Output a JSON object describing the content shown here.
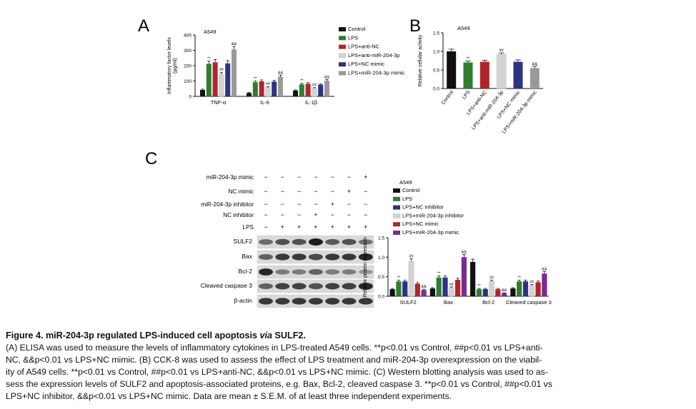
{
  "panel_letters": [
    "A",
    "B",
    "C"
  ],
  "colors": {
    "control": "#111111",
    "lps": "#2e7d2e",
    "red": "#b0252c",
    "light": "#d4d4d4",
    "navy": "#2b3480",
    "gray": "#9a9a9a",
    "purple": "#7a2a92"
  },
  "chart_data": [
    {
      "id": "A",
      "type": "bar",
      "title": "A549",
      "ylabel": "Inflammatory factor levels\n(pg/ml)",
      "xlabel": "",
      "ylim": [
        0,
        400
      ],
      "yticks": [
        "0",
        "100",
        "200",
        "300",
        "400"
      ],
      "categories": [
        "TNF-α",
        "IL-6",
        "IL-1β"
      ],
      "legend_position": "right",
      "series": [
        {
          "name": "Control",
          "color": "#111111",
          "values": [
            42,
            22,
            38
          ],
          "errors": [
            5,
            3,
            4
          ],
          "marks": [
            "",
            "",
            ""
          ]
        },
        {
          "name": "LPS",
          "color": "#2e7d2e",
          "values": [
            212,
            92,
            78
          ],
          "errors": [
            18,
            8,
            7
          ],
          "marks": [
            "**",
            "**",
            "**"
          ]
        },
        {
          "name": "LPS+anti-NC",
          "color": "#b0252c",
          "values": [
            222,
            98,
            82
          ],
          "errors": [
            18,
            9,
            7
          ],
          "marks": [
            "",
            "",
            ""
          ]
        },
        {
          "name": "LPS+anti-miR-204-3p",
          "color": "#d4d4d4",
          "values": [
            145,
            58,
            52
          ],
          "errors": [
            12,
            6,
            5
          ],
          "marks": [
            "##",
            "##",
            "##"
          ]
        },
        {
          "name": "LPS+NC mimic",
          "color": "#2b3480",
          "values": [
            215,
            96,
            76
          ],
          "errors": [
            18,
            8,
            6
          ],
          "marks": [
            "",
            "",
            ""
          ]
        },
        {
          "name": "LPS+miR-204-3p mimic",
          "color": "#9a9a9a",
          "values": [
            305,
            128,
            102
          ],
          "errors": [
            20,
            10,
            8
          ],
          "marks": [
            "&&",
            "&&",
            "&&"
          ]
        }
      ]
    },
    {
      "id": "B",
      "type": "bar",
      "title": "A549",
      "ylabel": "Relative cellular activity",
      "xlabel": "",
      "ylim": [
        0,
        1.5
      ],
      "yticks": [
        "0.0",
        "0.5",
        "1.0",
        "1.5"
      ],
      "categories": [
        "Control",
        "LPS",
        "LPS+anti-NC",
        "LPS+anti-miR-204-3p",
        "LPS+NC mimic",
        "LPS+miR-204-3p mimic"
      ],
      "values": [
        1.0,
        0.7,
        0.72,
        0.92,
        0.72,
        0.55
      ],
      "errors": [
        0.06,
        0.04,
        0.04,
        0.04,
        0.05,
        0.05
      ],
      "marks": [
        "",
        "**",
        "",
        "##",
        "",
        "&&"
      ],
      "colors": [
        "#111111",
        "#2e7d2e",
        "#b0252c",
        "#d4d4d4",
        "#2b3480",
        "#9a9a9a"
      ]
    },
    {
      "id": "C-bar",
      "type": "bar",
      "title": "A549",
      "ylabel": "Relative protein expression",
      "xlabel": "",
      "ylim": [
        0,
        1.5
      ],
      "yticks": [
        "0.0",
        "0.5",
        "1.0",
        "1.5"
      ],
      "categories": [
        "SULF2",
        "Bax",
        "Bcl-2",
        "Cleaved caspase 3"
      ],
      "legend_position": "top-left",
      "series": [
        {
          "name": "Control",
          "color": "#111111",
          "values": [
            0.18,
            0.2,
            0.88,
            0.2
          ],
          "errors": [
            0.02,
            0.02,
            0.07,
            0.02
          ],
          "marks": [
            "",
            "",
            "",
            ""
          ]
        },
        {
          "name": "LPS",
          "color": "#2e7d2e",
          "values": [
            0.38,
            0.48,
            0.18,
            0.38
          ],
          "errors": [
            0.03,
            0.04,
            0.02,
            0.03
          ],
          "marks": [
            "**",
            "**",
            "**",
            "**"
          ]
        },
        {
          "name": "LPS+NC inhibitor",
          "color": "#2b3480",
          "values": [
            0.38,
            0.48,
            0.18,
            0.38
          ],
          "errors": [
            0.03,
            0.04,
            0.02,
            0.03
          ],
          "marks": [
            "",
            "",
            "",
            ""
          ]
        },
        {
          "name": "LPS+miR-204-3p inhibitor",
          "color": "#d4d4d4",
          "values": [
            0.9,
            0.22,
            0.38,
            0.28
          ],
          "errors": [
            0.06,
            0.02,
            0.03,
            0.02
          ],
          "marks": [
            "##",
            "##",
            "##",
            "##"
          ]
        },
        {
          "name": "LPS+NC mimic",
          "color": "#b0252c",
          "values": [
            0.32,
            0.42,
            0.18,
            0.36
          ],
          "errors": [
            0.03,
            0.04,
            0.02,
            0.03
          ],
          "marks": [
            "",
            "",
            "",
            ""
          ]
        },
        {
          "name": "LPS+miR-204-3p mimic",
          "color": "#7a2a92",
          "values": [
            0.16,
            1.0,
            0.08,
            0.58
          ],
          "errors": [
            0.02,
            0.07,
            0.01,
            0.05
          ],
          "marks": [
            "&&",
            "&&",
            "&&",
            "&&"
          ]
        }
      ]
    },
    {
      "id": "C-blot",
      "type": "table",
      "treatment_labels": [
        "miR-204-3p mimic",
        "NC mimic",
        "miR-204-3p inhibitor",
        "NC inhibitor",
        "LPS"
      ],
      "treatment_rows": [
        [
          "−",
          "−",
          "−",
          "−",
          "−",
          "−",
          "+"
        ],
        [
          "−",
          "−",
          "−",
          "−",
          "−",
          "+",
          "−"
        ],
        [
          "−",
          "−",
          "−",
          "−",
          "+",
          "−",
          "−"
        ],
        [
          "−",
          "−",
          "−",
          "+",
          "−",
          "−",
          "−"
        ],
        [
          "−",
          "+",
          "+",
          "+",
          "+",
          "+",
          "+"
        ]
      ],
      "protein_labels": [
        "SULF2",
        "Bax",
        "Bcl-2",
        "Cleaved caspase 3",
        "β-actin"
      ],
      "band_intensity": [
        [
          0.55,
          0.7,
          0.7,
          1.0,
          0.65,
          0.7,
          0.5
        ],
        [
          0.6,
          0.85,
          0.85,
          0.75,
          0.85,
          0.85,
          0.95
        ],
        [
          0.95,
          0.45,
          0.45,
          0.6,
          0.45,
          0.45,
          0.3
        ],
        [
          0.6,
          0.8,
          0.8,
          0.7,
          0.8,
          0.8,
          0.95
        ],
        [
          0.85,
          0.85,
          0.85,
          0.85,
          0.85,
          0.85,
          0.85
        ]
      ]
    }
  ],
  "caption": {
    "title_pre": "Figure 4. miR-204-3p regulated LPS-induced cell apoptosis ",
    "title_via": "via",
    "title_post": " SULF2.",
    "line1": "(A) ELISA was used to measure the levels of inflammatory cytokines in LPS-treated A549 cells. **p<0.01 vs Control, ##p<0.01 vs LPS+anti-",
    "line2": "NC, &&p<0.01 vs LPS+NC mimic. (B) CCK-8 was used to assess the effect of LPS treatment and miR-204-3p overexpression on the viabil-",
    "line3": "ity of A549 cells. **p<0.01 vs Control, ##p<0.01 vs LPS+anti-NC, &&p<0.01 vs LPS+NC mimic. (C) Western blotting analysis was used to as-",
    "line4": "sess the expression levels of SULF2 and apoptosis-associated proteins, e.g. Bax, Bcl-2, cleaved caspase 3. **p<0.01 vs Control, ##p<0.01 vs",
    "line5": "LPS+NC inhibitor, &&p<0.01 vs LPS+NC mimic. Data are mean ± S.E.M. of at least three independent experiments."
  }
}
